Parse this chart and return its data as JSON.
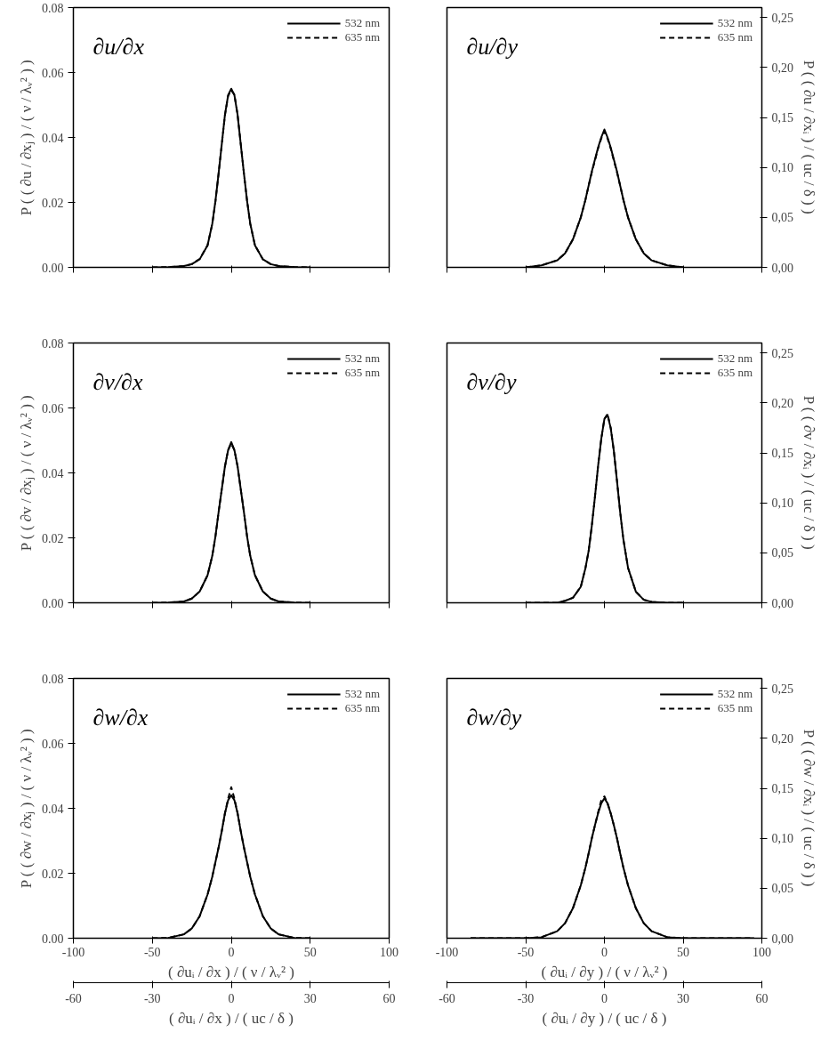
{
  "chart_data": [
    {
      "type": "line",
      "title": "∂u/∂x",
      "ylabel": "P ( ( ∂u / ∂xⱼ ) / ( ν / λᵥ² ) )",
      "legend": "top right",
      "tick_labels": "y",
      "x": [
        -50,
        -40,
        -30,
        -25,
        -20,
        -15,
        -12,
        -10,
        -8,
        -6,
        -4,
        -2,
        0,
        2,
        4,
        6,
        8,
        10,
        12,
        15,
        20,
        25,
        30,
        40,
        50
      ],
      "xlim": [
        -100,
        100
      ],
      "xticks": [
        {
          "value": -100,
          "label": null
        },
        {
          "value": -50,
          "label": null
        },
        {
          "value": 0,
          "label": null
        },
        {
          "value": 50,
          "label": null
        },
        {
          "value": 100,
          "label": null
        }
      ],
      "ylim": [
        0,
        0.08
      ],
      "yticks": [
        {
          "value": 0,
          "label": "0.00"
        },
        {
          "value": 0.02,
          "label": "0.02"
        },
        {
          "value": 0.04,
          "label": "0.04"
        },
        {
          "value": 0.06,
          "label": "0.06"
        },
        {
          "value": 0.08,
          "label": "0.08"
        }
      ],
      "series": [
        {
          "name": "532 nm",
          "color": "#000000",
          "line_style": "solid",
          "values": [
            0,
            0.0001,
            0.0004,
            0.001,
            0.0025,
            0.0068,
            0.0135,
            0.0205,
            0.029,
            0.038,
            0.047,
            0.053,
            0.055,
            0.053,
            0.047,
            0.038,
            0.029,
            0.0205,
            0.0135,
            0.0068,
            0.0025,
            0.001,
            0.0004,
            0.0001,
            0
          ]
        },
        {
          "name": "635 nm",
          "color": "#000000",
          "line_style": "dashed",
          "values": [
            0,
            0.0001,
            0.0004,
            0.001,
            0.0026,
            0.0068,
            0.0134,
            0.0204,
            0.029,
            0.038,
            0.0468,
            0.0528,
            0.0545,
            0.0532,
            0.047,
            0.038,
            0.029,
            0.0206,
            0.0135,
            0.0068,
            0.0025,
            0.001,
            0.0004,
            0.0001,
            0
          ]
        }
      ]
    },
    {
      "type": "line",
      "title": "∂u/∂y",
      "y2label": "P ( ( ∂u / ∂xᵢ ) / ( uc / δ ) )",
      "legend": "top right",
      "tick_labels": "y",
      "x": [
        -50,
        -40,
        -30,
        -25,
        -20,
        -15,
        -12,
        -10,
        -8,
        -6,
        -4,
        -2,
        0,
        2,
        4,
        6,
        8,
        10,
        12,
        15,
        20,
        25,
        30,
        40,
        50
      ],
      "xlim": [
        -100,
        100
      ],
      "xticks": [
        {
          "value": -100,
          "label": null
        },
        {
          "value": -50,
          "label": null
        },
        {
          "value": 0,
          "label": null
        },
        {
          "value": 50,
          "label": null
        },
        {
          "value": 100,
          "label": null
        }
      ],
      "y2lim": [
        0,
        0.26
      ],
      "y2ticks": [
        {
          "value": 0,
          "label": "0,00"
        },
        {
          "value": 0.05,
          "label": "0,05"
        },
        {
          "value": 0.1,
          "label": "0,10"
        },
        {
          "value": 0.15,
          "label": "0,15"
        },
        {
          "value": 0.2,
          "label": "0,20"
        },
        {
          "value": 0.25,
          "label": "0,25"
        }
      ],
      "series": [
        {
          "name": "532 nm",
          "color": "#000000",
          "line_style": "solid",
          "axis": "y2",
          "values": [
            0,
            0.002,
            0.007,
            0.014,
            0.028,
            0.05,
            0.068,
            0.082,
            0.096,
            0.108,
            0.12,
            0.13,
            0.138,
            0.13,
            0.12,
            0.108,
            0.096,
            0.082,
            0.068,
            0.05,
            0.028,
            0.014,
            0.007,
            0.002,
            0
          ]
        },
        {
          "name": "635 nm",
          "color": "#000000",
          "line_style": "dashed",
          "axis": "y2",
          "values": [
            0,
            0.002,
            0.007,
            0.014,
            0.028,
            0.05,
            0.068,
            0.082,
            0.095,
            0.107,
            0.119,
            0.129,
            0.136,
            0.129,
            0.119,
            0.107,
            0.095,
            0.082,
            0.068,
            0.05,
            0.028,
            0.014,
            0.007,
            0.002,
            0
          ]
        }
      ]
    },
    {
      "type": "line",
      "title": "∂v/∂x",
      "ylabel": "P ( ( ∂v / ∂xⱼ ) / ( ν / λᵥ² ) )",
      "legend": "top right",
      "tick_labels": "y",
      "x": [
        -50,
        -40,
        -30,
        -25,
        -20,
        -15,
        -12,
        -10,
        -8,
        -6,
        -4,
        -2,
        0,
        2,
        4,
        6,
        8,
        10,
        12,
        15,
        20,
        25,
        30,
        40,
        50
      ],
      "xlim": [
        -100,
        100
      ],
      "xticks": [
        {
          "value": -100,
          "label": null
        },
        {
          "value": -50,
          "label": null
        },
        {
          "value": 0,
          "label": null
        },
        {
          "value": 50,
          "label": null
        },
        {
          "value": 100,
          "label": null
        }
      ],
      "ylim": [
        0,
        0.08
      ],
      "yticks": [
        {
          "value": 0,
          "label": "0.00"
        },
        {
          "value": 0.02,
          "label": "0.02"
        },
        {
          "value": 0.04,
          "label": "0.04"
        },
        {
          "value": 0.06,
          "label": "0.06"
        },
        {
          "value": 0.08,
          "label": "0.08"
        }
      ],
      "series": [
        {
          "name": "532 nm",
          "color": "#000000",
          "line_style": "solid",
          "values": [
            0,
            0.0001,
            0.0004,
            0.0013,
            0.0035,
            0.0085,
            0.0145,
            0.0205,
            0.028,
            0.035,
            0.042,
            0.047,
            0.0495,
            0.047,
            0.042,
            0.035,
            0.028,
            0.0205,
            0.0145,
            0.0085,
            0.0035,
            0.0013,
            0.0004,
            0.0001,
            0
          ]
        },
        {
          "name": "635 nm",
          "color": "#000000",
          "line_style": "dashed",
          "values": [
            0,
            0.0001,
            0.0004,
            0.0013,
            0.0035,
            0.0085,
            0.0145,
            0.0205,
            0.028,
            0.035,
            0.042,
            0.047,
            0.049,
            0.047,
            0.042,
            0.035,
            0.028,
            0.0205,
            0.0145,
            0.0085,
            0.0035,
            0.0013,
            0.0004,
            0.0001,
            0
          ]
        }
      ]
    },
    {
      "type": "line",
      "title": "∂v/∂y",
      "y2label": "P ( ( ∂v / ∂xᵢ ) / ( uc / δ ) )",
      "legend": "top right",
      "tick_labels": "y",
      "x": [
        -50,
        -40,
        -30,
        -25,
        -20,
        -15,
        -12,
        -10,
        -8,
        -6,
        -4,
        -2,
        0,
        2,
        4,
        6,
        8,
        10,
        12,
        15,
        20,
        25,
        30,
        40,
        50
      ],
      "xlim": [
        -100,
        100
      ],
      "xticks": [
        {
          "value": -100,
          "label": null
        },
        {
          "value": -50,
          "label": null
        },
        {
          "value": 0,
          "label": null
        },
        {
          "value": 50,
          "label": null
        },
        {
          "value": 100,
          "label": null
        }
      ],
      "y2lim": [
        0,
        0.26
      ],
      "y2ticks": [
        {
          "value": 0,
          "label": "0,00"
        },
        {
          "value": 0.05,
          "label": "0,05"
        },
        {
          "value": 0.1,
          "label": "0,10"
        },
        {
          "value": 0.15,
          "label": "0,15"
        },
        {
          "value": 0.2,
          "label": "0,20"
        },
        {
          "value": 0.25,
          "label": "0,25"
        }
      ],
      "series": [
        {
          "name": "532 nm",
          "color": "#000000",
          "line_style": "solid",
          "axis": "y2",
          "values": [
            0,
            0,
            0,
            0.002,
            0.005,
            0.016,
            0.035,
            0.052,
            0.077,
            0.106,
            0.137,
            0.164,
            0.184,
            0.188,
            0.175,
            0.152,
            0.122,
            0.091,
            0.064,
            0.035,
            0.011,
            0.003,
            0.001,
            0,
            0
          ]
        },
        {
          "name": "635 nm",
          "color": "#000000",
          "line_style": "dashed",
          "axis": "y2",
          "values": [
            0,
            0,
            0,
            0.002,
            0.005,
            0.016,
            0.035,
            0.052,
            0.077,
            0.106,
            0.137,
            0.164,
            0.184,
            0.189,
            0.175,
            0.152,
            0.122,
            0.091,
            0.064,
            0.035,
            0.011,
            0.003,
            0.001,
            0,
            0
          ]
        }
      ]
    },
    {
      "type": "line",
      "title": "∂w/∂x",
      "xlabel": "( ∂uᵢ / ∂x ) / ( ν / λᵥ² )",
      "ylabel": "P ( ( ∂w / ∂xⱼ ) / ( ν / λᵥ² ) )",
      "x2label": "( ∂uᵢ / ∂x ) / ( uc / δ )",
      "legend": "top right",
      "x": [
        -50,
        -40,
        -30,
        -25,
        -20,
        -15,
        -12,
        -10,
        -8,
        -6,
        -4,
        -2,
        0,
        2,
        4,
        6,
        8,
        10,
        12,
        15,
        20,
        25,
        30,
        40,
        50
      ],
      "xlim": [
        -100,
        100
      ],
      "xticks": [
        -100,
        -50,
        0,
        50,
        100
      ],
      "x2lim": [
        -60,
        60
      ],
      "x2ticks": [
        -60,
        -30,
        0,
        30,
        60
      ],
      "ylim": [
        0,
        0.08
      ],
      "yticks": [
        {
          "value": 0,
          "label": "0.00"
        },
        {
          "value": 0.02,
          "label": "0.02"
        },
        {
          "value": 0.04,
          "label": "0.04"
        },
        {
          "value": 0.06,
          "label": "0.06"
        },
        {
          "value": 0.08,
          "label": "0.08"
        }
      ],
      "series": [
        {
          "name": "532 nm",
          "color": "#000000",
          "line_style": "solid",
          "values": [
            0,
            0.0001,
            0.0012,
            0.003,
            0.0068,
            0.0135,
            0.019,
            0.0235,
            0.028,
            0.033,
            0.0385,
            0.0425,
            0.044,
            0.0425,
            0.0385,
            0.033,
            0.028,
            0.0235,
            0.019,
            0.0135,
            0.0068,
            0.003,
            0.0012,
            0.0001,
            0
          ]
        },
        {
          "name": "635 nm",
          "color": "#000000",
          "line_style": "dashed",
          "values": [
            0,
            0.0001,
            0.0012,
            0.003,
            0.0068,
            0.0135,
            0.019,
            0.0235,
            0.028,
            0.033,
            0.0385,
            0.043,
            0.0465,
            0.043,
            0.0385,
            0.033,
            0.028,
            0.0235,
            0.019,
            0.0135,
            0.0068,
            0.003,
            0.0012,
            0.0001,
            0
          ]
        }
      ]
    },
    {
      "type": "line",
      "title": "∂w/∂y",
      "xlabel": "( ∂uᵢ / ∂y ) / ( ν / λᵥ² )",
      "y2label": "P ( ( ∂w / ∂xᵢ ) / ( uc / δ ) )",
      "x2label": "( ∂uᵢ / ∂y ) / ( uc / δ )",
      "legend": "top right",
      "x": [
        -85,
        -50,
        -40,
        -30,
        -25,
        -20,
        -15,
        -12,
        -10,
        -8,
        -6,
        -4,
        -2,
        0,
        2,
        4,
        6,
        8,
        10,
        12,
        15,
        20,
        25,
        30,
        40,
        50,
        95
      ],
      "xlim": [
        -100,
        100
      ],
      "xticks": [
        -100,
        -50,
        0,
        50,
        100
      ],
      "x2lim": [
        -60,
        60
      ],
      "x2ticks": [
        -60,
        -30,
        0,
        30,
        60
      ],
      "y2lim": [
        0,
        0.26
      ],
      "y2ticks": [
        {
          "value": 0,
          "label": "0,00"
        },
        {
          "value": 0.05,
          "label": "0,05"
        },
        {
          "value": 0.1,
          "label": "0,10"
        },
        {
          "value": 0.15,
          "label": "0,15"
        },
        {
          "value": 0.2,
          "label": "0,20"
        },
        {
          "value": 0.25,
          "label": "0,25"
        }
      ],
      "series": [
        {
          "name": "532 nm",
          "color": "#000000",
          "line_style": "solid",
          "axis": "y2",
          "values": [
            0,
            0,
            0.001,
            0.007,
            0.015,
            0.03,
            0.053,
            0.071,
            0.085,
            0.1,
            0.113,
            0.125,
            0.135,
            0.14,
            0.135,
            0.125,
            0.113,
            0.1,
            0.085,
            0.071,
            0.053,
            0.03,
            0.015,
            0.007,
            0.001,
            0,
            0
          ]
        },
        {
          "name": "635 nm",
          "color": "#000000",
          "line_style": "dashed",
          "axis": "y2",
          "values": [
            0,
            0,
            0.001,
            0.007,
            0.015,
            0.03,
            0.053,
            0.071,
            0.085,
            0.1,
            0.113,
            0.126,
            0.138,
            0.142,
            0.135,
            0.125,
            0.113,
            0.1,
            0.085,
            0.071,
            0.053,
            0.03,
            0.015,
            0.007,
            0.001,
            0,
            0
          ]
        }
      ]
    }
  ]
}
